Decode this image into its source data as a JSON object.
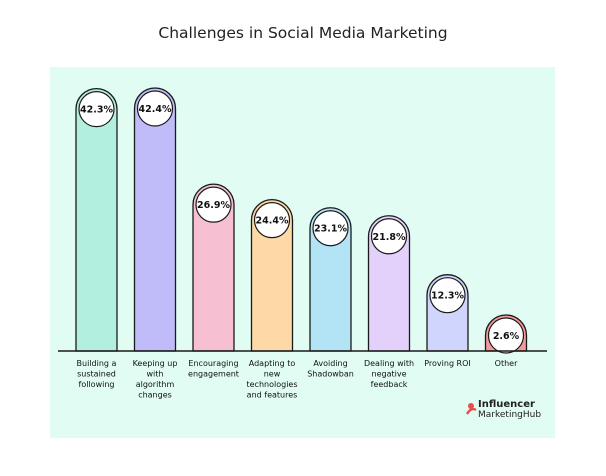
{
  "chart_data": {
    "type": "bar",
    "title": "Challenges in Social Media Marketing",
    "categories": [
      [
        "Building a",
        "sustained",
        "following"
      ],
      [
        "Keeping up",
        "with",
        "algorithm",
        "changes"
      ],
      [
        "Encouraging",
        "engagement"
      ],
      [
        "Adapting to",
        "new",
        "technologies",
        "and features"
      ],
      [
        "Avoiding",
        "Shadowban"
      ],
      [
        "Dealing with",
        "negative",
        "feedback"
      ],
      [
        "Proving ROI"
      ],
      [
        "Other"
      ]
    ],
    "values": [
      42.3,
      42.4,
      26.9,
      24.4,
      23.1,
      21.8,
      12.3,
      2.6
    ],
    "value_labels": [
      "42.3%",
      "42.4%",
      "26.9%",
      "24.4%",
      "23.1%",
      "21.8%",
      "12.3%",
      "2.6%"
    ],
    "colors": [
      "#b3efde",
      "#bfbcf9",
      "#f6bfd2",
      "#fdd9a8",
      "#b2e4f6",
      "#e3d1fb",
      "#cfd5fc",
      "#f4999b"
    ],
    "xlabel": "",
    "ylabel": "",
    "ylim": [
      0,
      42.4
    ],
    "grid": false,
    "legend": "none"
  },
  "brand": {
    "line1": "Influencer",
    "line2": "MarketingHub",
    "accent": "#ec4b4b"
  }
}
